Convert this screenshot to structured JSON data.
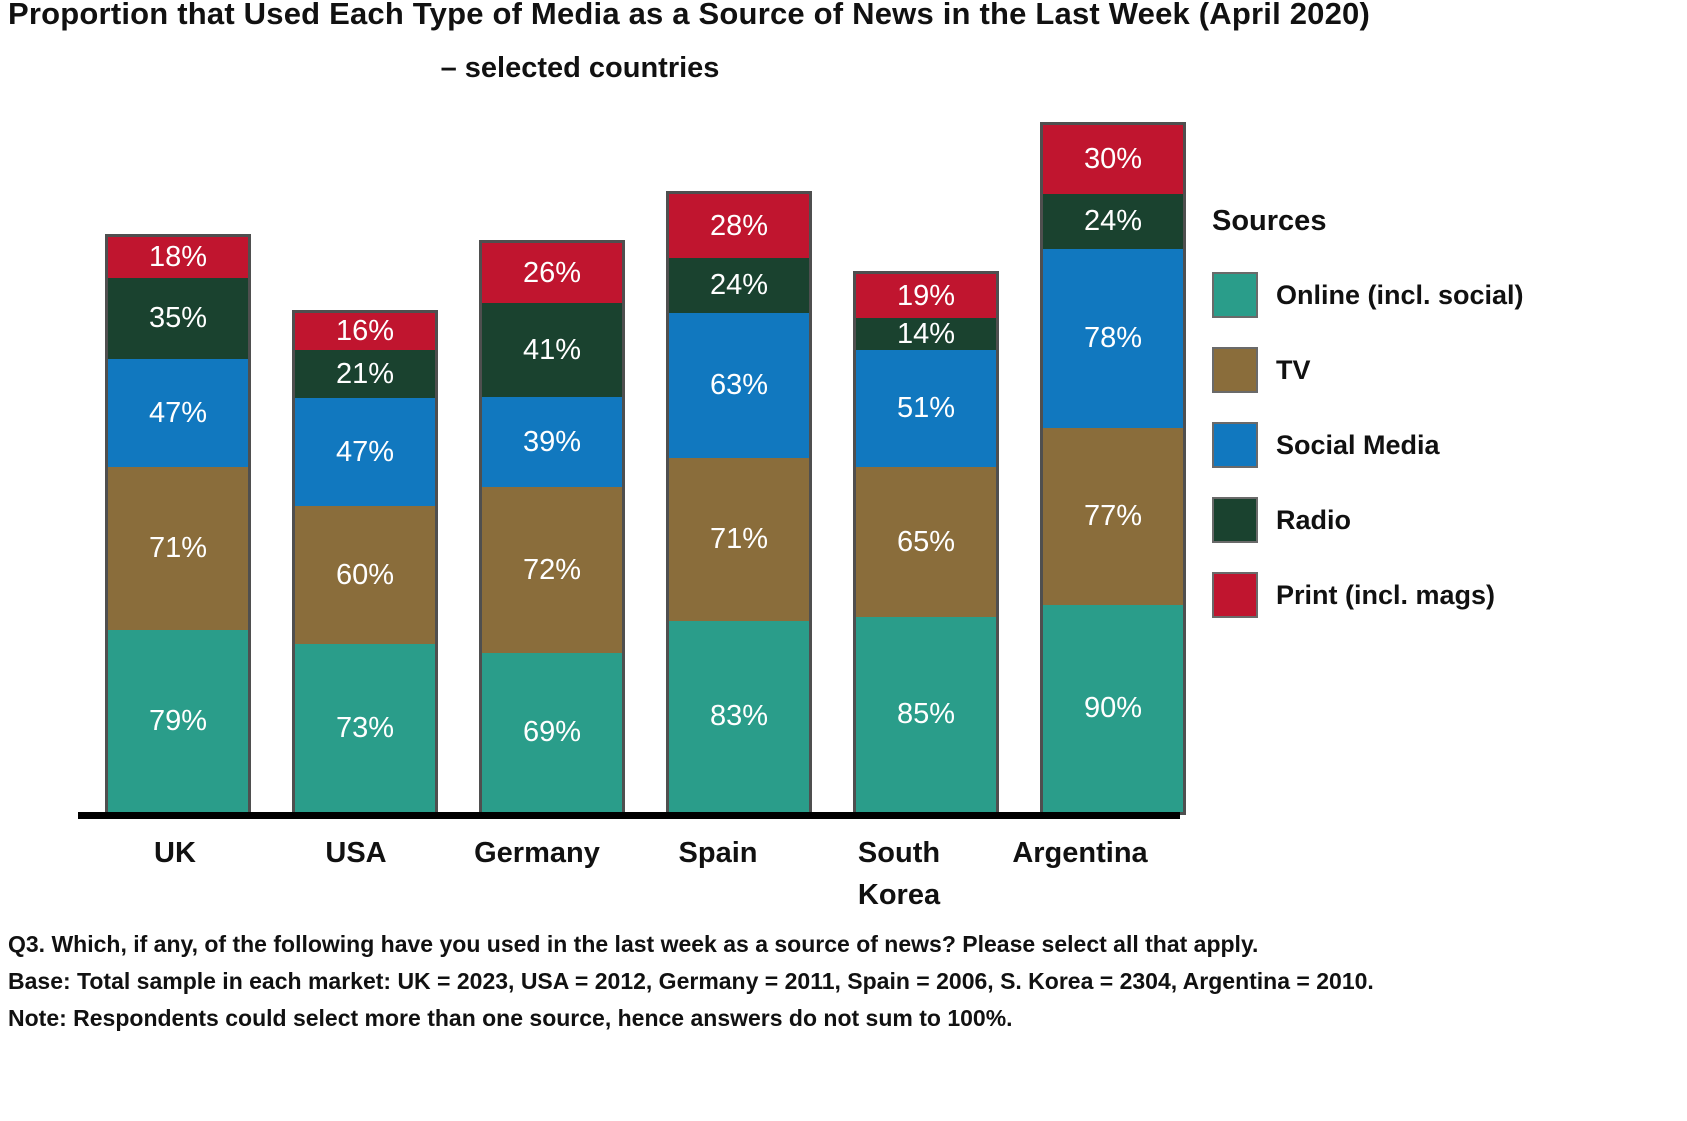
{
  "title": {
    "line1": "Proportion that Used Each Type of Media as a Source of News in the Last Week (April 2020)",
    "line2": "– selected countries"
  },
  "legend": {
    "title": "Sources",
    "items": [
      {
        "label": "Online (incl. social)",
        "color": "#2a9d8a"
      },
      {
        "label": "TV",
        "color": "#8a6d3b"
      },
      {
        "label": "Social Media",
        "color": "#1178bf"
      },
      {
        "label": "Radio",
        "color": "#1a422f"
      },
      {
        "label": "Print (incl. mags)",
        "color": "#c0152f"
      }
    ]
  },
  "chart_data": {
    "type": "bar",
    "subtype": "stacked",
    "title": "Proportion that Used Each Type of Media as a Source of News in the Last Week (April 2020) – selected countries",
    "categories": [
      "UK",
      "USA",
      "Germany",
      "Spain",
      "South\nKorea",
      "Argentina"
    ],
    "series": [
      {
        "name": "Online (incl. social)",
        "color": "#2a9d8a",
        "values": [
          79,
          73,
          69,
          83,
          85,
          90
        ]
      },
      {
        "name": "TV",
        "color": "#8a6d3b",
        "values": [
          71,
          60,
          72,
          71,
          65,
          77
        ]
      },
      {
        "name": "Social Media",
        "color": "#1178bf",
        "values": [
          47,
          47,
          39,
          63,
          51,
          78
        ]
      },
      {
        "name": "Radio",
        "color": "#1a422f",
        "values": [
          35,
          21,
          41,
          24,
          14,
          24
        ]
      },
      {
        "name": "Print (incl. mags)",
        "color": "#c0152f",
        "values": [
          18,
          16,
          26,
          28,
          19,
          30
        ]
      }
    ],
    "value_suffix": "%",
    "ylim": [
      0,
      100
    ],
    "grid": false,
    "legend_position": "right",
    "note": "Segment heights drawn proportional to each percentage; categories can sum over 100%"
  },
  "footnotes": [
    "Q3. Which, if any, of the following have you used in the last week as a source of news? Please select all that apply.",
    "Base: Total sample in each market: UK = 2023, USA = 2012, Germany = 2011, Spain = 2006, S. Korea = 2304, Argentina = 2010.",
    "Note: Respondents could select more than one source, hence answers do not sum to 100%."
  ]
}
